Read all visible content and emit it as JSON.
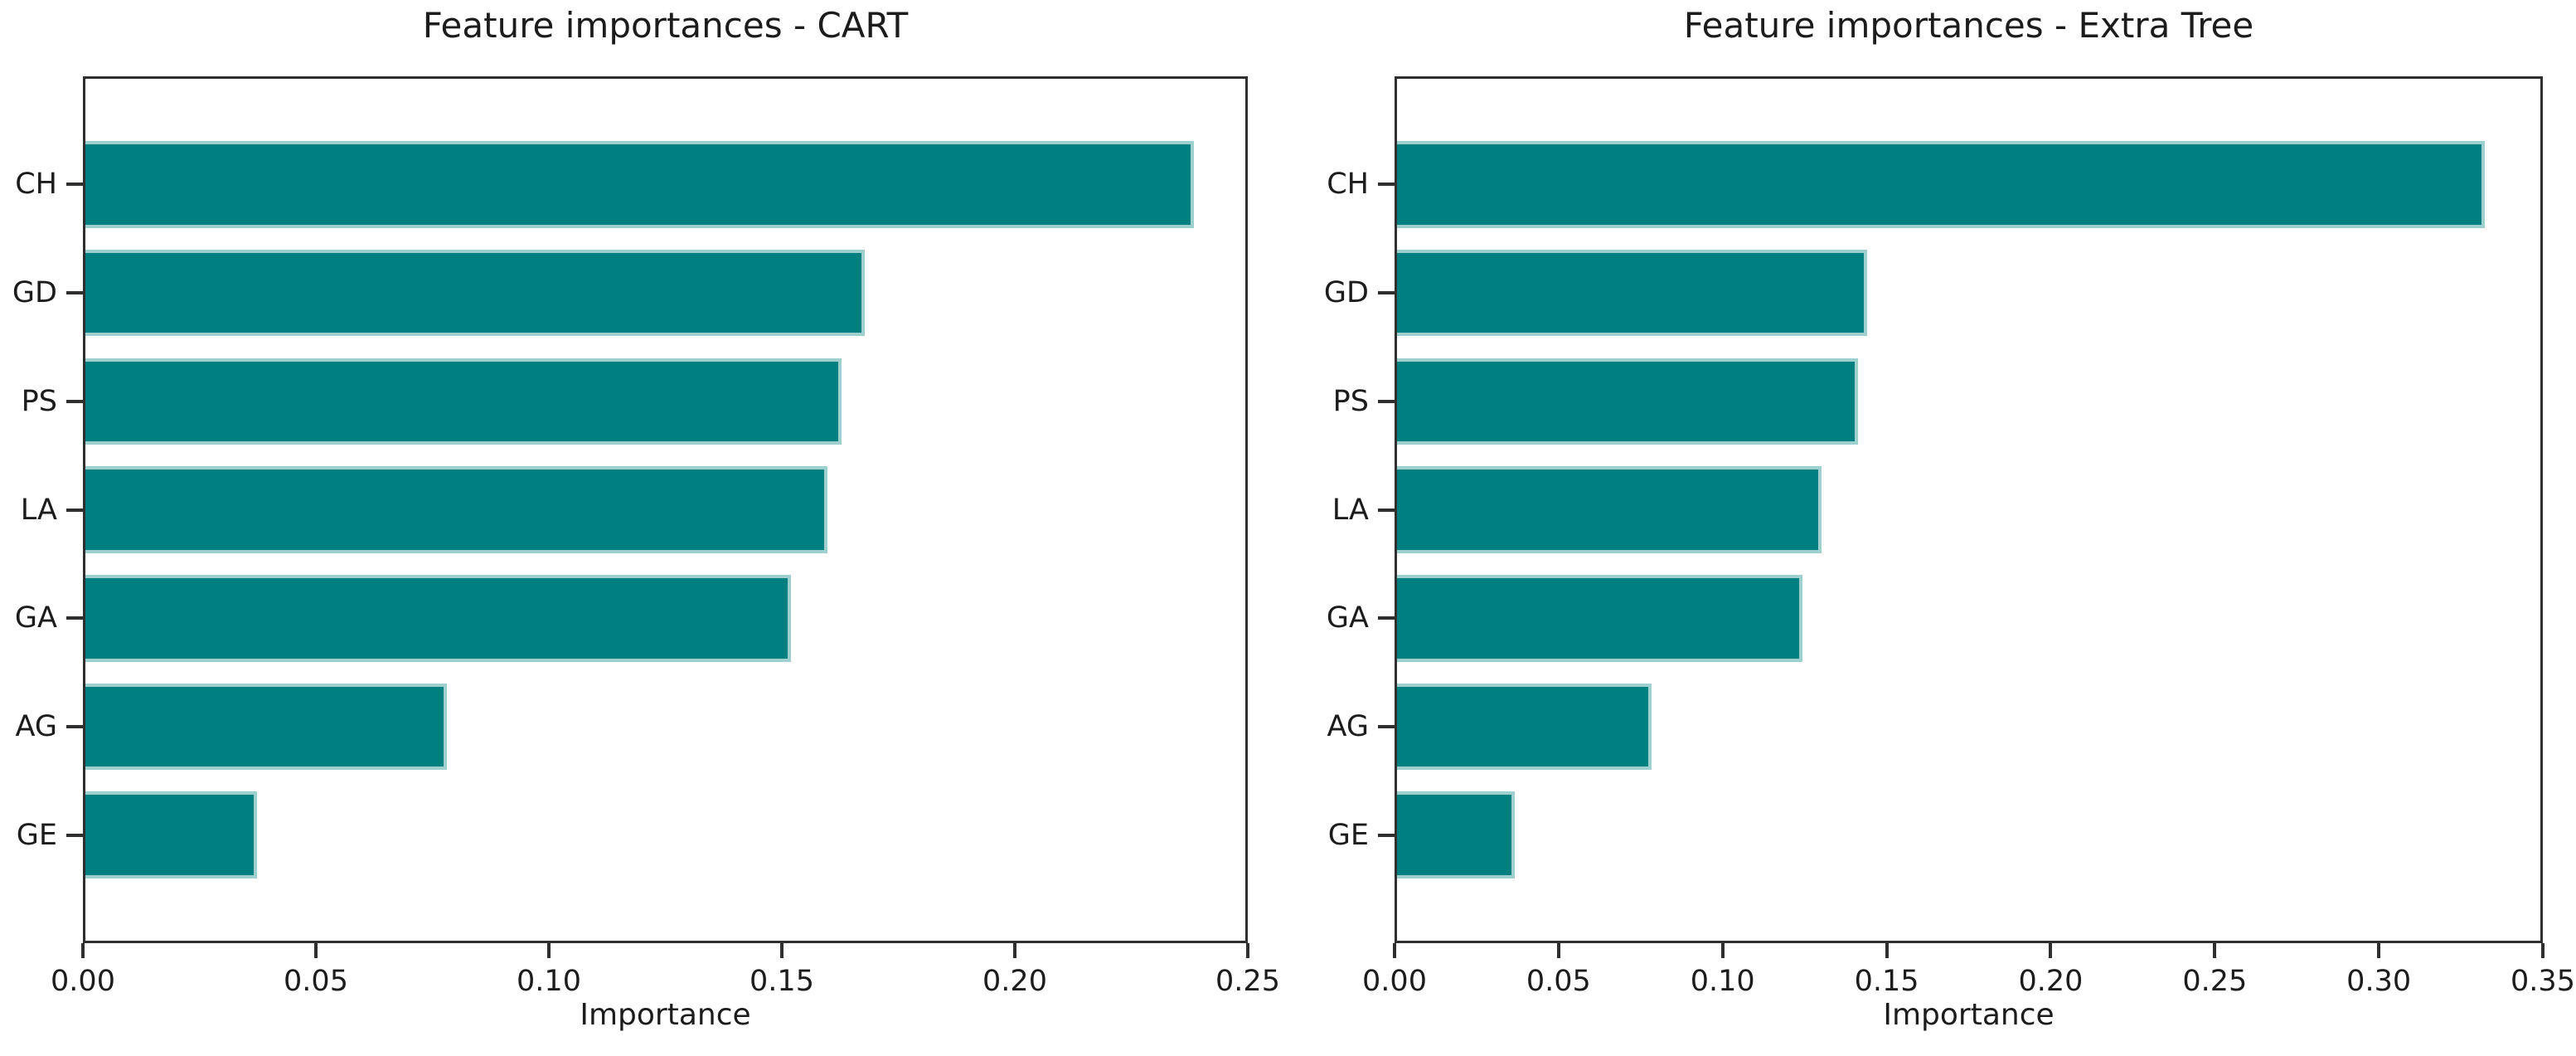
{
  "page": {
    "background": "#ffffff"
  },
  "colors": {
    "bar_fill": "#007f80",
    "bar_edge": "#9ed0d0",
    "spine": "#2f2f2f",
    "text": "#1c1c1c"
  },
  "chart_data": [
    {
      "type": "bar",
      "orientation": "horizontal",
      "title": "Feature importances - CART",
      "xlabel": "Importance",
      "ylabel": "",
      "categories": [
        "CH",
        "GD",
        "PS",
        "LA",
        "GA",
        "AG",
        "GE"
      ],
      "values": [
        0.239,
        0.168,
        0.163,
        0.16,
        0.152,
        0.078,
        0.037
      ],
      "xlim": [
        0,
        0.25
      ],
      "xticks": [
        "0.00",
        "0.05",
        "0.10",
        "0.15",
        "0.20",
        "0.25"
      ],
      "xtick_values": [
        0,
        0.05,
        0.1,
        0.15,
        0.2,
        0.25
      ],
      "grid": false,
      "legend": null,
      "bar_color": "#007f80"
    },
    {
      "type": "bar",
      "orientation": "horizontal",
      "title": "Feature importances - Extra Tree",
      "xlabel": "Importance",
      "ylabel": "",
      "categories": [
        "CH",
        "GD",
        "PS",
        "LA",
        "GA",
        "AG",
        "GE"
      ],
      "values": [
        0.333,
        0.144,
        0.141,
        0.13,
        0.124,
        0.078,
        0.036
      ],
      "xlim": [
        0,
        0.35
      ],
      "xticks": [
        "0.00",
        "0.05",
        "0.10",
        "0.15",
        "0.20",
        "0.25",
        "0.30",
        "0.35"
      ],
      "xtick_values": [
        0,
        0.05,
        0.1,
        0.15,
        0.2,
        0.25,
        0.3,
        0.35
      ],
      "grid": false,
      "legend": null,
      "bar_color": "#007f80"
    }
  ]
}
